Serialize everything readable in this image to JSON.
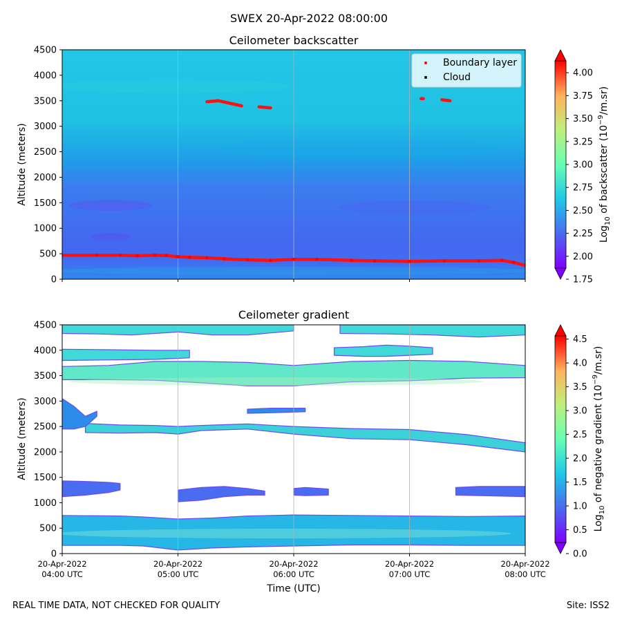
{
  "suptitle": "SWEX 20-Apr-2022 08:00:00",
  "footer": {
    "left": "REAL TIME DATA, NOT CHECKED FOR QUALITY",
    "right": "Site: ISS2"
  },
  "colormap": [
    "#8000ff",
    "#4a6cf0",
    "#1fc7e8",
    "#66ffb3",
    "#c0ef7a",
    "#ffb360",
    "#ff0000"
  ],
  "chart_data": [
    {
      "type": "heatmap",
      "title": "Ceilometer backscatter",
      "ylabel": "Altitude (meters)",
      "ylim": [
        0,
        4500
      ],
      "yticks": [
        "0",
        "500",
        "1000",
        "1500",
        "2000",
        "2500",
        "3000",
        "3500",
        "4000",
        "4500"
      ],
      "xlim_hours": [
        4,
        8
      ],
      "grid": "vertical",
      "legend_position": "upper-right",
      "legend": [
        {
          "label": "Boundary layer",
          "color": "#ff0000"
        },
        {
          "label": "Cloud",
          "color": "#000000"
        }
      ],
      "colorbar": {
        "label_main": "Log",
        "label_sub": "10",
        "label_rest": " of backscatter (10",
        "label_exp": "−9",
        "label_end": "/m.sr)",
        "range": [
          1.75,
          4.25
        ],
        "ticks": [
          "1.75",
          "2.00",
          "2.25",
          "2.50",
          "2.75",
          "3.00",
          "3.25",
          "3.50",
          "3.75",
          "4.00"
        ]
      },
      "boundary_layer": {
        "t": [
          4.0,
          4.3,
          4.5,
          4.65,
          4.8,
          4.9,
          5.0,
          5.1,
          5.25,
          5.4,
          5.6,
          5.8,
          6.0,
          6.2,
          6.5,
          6.7,
          7.0,
          7.3,
          7.6,
          7.8,
          7.9,
          8.0
        ],
        "alt": [
          470,
          470,
          470,
          460,
          470,
          465,
          440,
          430,
          420,
          400,
          380,
          370,
          390,
          390,
          370,
          360,
          350,
          360,
          360,
          370,
          330,
          270
        ]
      },
      "cloud_segments": [
        {
          "t": [
            5.25,
            5.35,
            5.45,
            5.55
          ],
          "alt": [
            3480,
            3500,
            3450,
            3400
          ]
        },
        {
          "t": [
            5.7,
            5.8
          ],
          "alt": [
            3380,
            3360
          ]
        },
        {
          "t": [
            7.1,
            7.12
          ],
          "alt": [
            3540,
            3540
          ]
        },
        {
          "t": [
            7.28,
            7.35
          ],
          "alt": [
            3520,
            3500
          ]
        }
      ]
    },
    {
      "type": "heatmap",
      "title": "Ceilometer gradient",
      "ylabel": "Altitude (meters)",
      "xlabel": "Time (UTC)",
      "ylim": [
        0,
        4500
      ],
      "yticks": [
        "0",
        "500",
        "1000",
        "1500",
        "2000",
        "2500",
        "3000",
        "3500",
        "4000",
        "4500"
      ],
      "xlim_hours": [
        4,
        8
      ],
      "xticks": [
        {
          "date": "20-Apr-2022",
          "time": "04:00 UTC"
        },
        {
          "date": "20-Apr-2022",
          "time": "05:00 UTC"
        },
        {
          "date": "20-Apr-2022",
          "time": "06:00 UTC"
        },
        {
          "date": "20-Apr-2022",
          "time": "07:00 UTC"
        },
        {
          "date": "20-Apr-2022",
          "time": "08:00 UTC"
        }
      ],
      "grid": "vertical",
      "colorbar": {
        "label_main": "Log",
        "label_sub": "10",
        "label_rest": " of negative gradient (10",
        "label_exp": "−9",
        "label_end": "/m.sr)",
        "range": [
          0.0,
          4.8
        ],
        "ticks": [
          "0.0",
          "0.5",
          "1.0",
          "1.5",
          "2.0",
          "2.5",
          "3.0",
          "3.5",
          "4.0",
          "4.5"
        ]
      },
      "bands": [
        {
          "t": [
            4.0,
            4.5,
            4.7,
            5.0,
            5.3,
            5.6,
            6.0,
            6.5,
            7.0,
            7.5,
            8.0
          ],
          "low": [
            160,
            160,
            150,
            70,
            110,
            130,
            150,
            170,
            170,
            160,
            160
          ],
          "high": [
            750,
            740,
            720,
            680,
            700,
            740,
            760,
            750,
            740,
            730,
            740
          ],
          "color": "#27b7e6"
        },
        {
          "t": [
            5.0,
            5.2,
            5.4,
            5.6,
            5.75
          ],
          "low": [
            1020,
            1050,
            1120,
            1150,
            1150
          ],
          "high": [
            1250,
            1300,
            1320,
            1280,
            1230
          ],
          "color": "#4a6cf0"
        },
        {
          "t": [
            4.0,
            4.2,
            4.4,
            4.5
          ],
          "low": [
            1120,
            1150,
            1200,
            1250
          ],
          "high": [
            1430,
            1420,
            1400,
            1380
          ],
          "color": "#4a6cf0"
        },
        {
          "t": [
            7.4,
            7.6,
            7.8,
            8.0
          ],
          "low": [
            1150,
            1140,
            1130,
            1120
          ],
          "high": [
            1300,
            1320,
            1320,
            1320
          ],
          "color": "#4a6cf0"
        },
        {
          "t": [
            6.0,
            6.1,
            6.3
          ],
          "low": [
            1150,
            1140,
            1150
          ],
          "high": [
            1280,
            1300,
            1270
          ],
          "color": "#4a6cf0"
        },
        {
          "t": [
            4.2,
            4.5,
            4.8,
            5.0,
            5.2,
            5.6,
            6.0,
            6.5,
            7.0,
            7.5,
            8.0
          ],
          "low": [
            2380,
            2370,
            2380,
            2350,
            2420,
            2450,
            2350,
            2260,
            2240,
            2140,
            2000
          ],
          "high": [
            2560,
            2530,
            2520,
            2500,
            2520,
            2550,
            2500,
            2460,
            2440,
            2340,
            2180
          ],
          "color": "#3cd0d8"
        },
        {
          "t": [
            4.0,
            4.4,
            4.8,
            5.2,
            5.6,
            6.0,
            6.5,
            7.0,
            7.5,
            8.0
          ],
          "low": [
            3420,
            3420,
            3410,
            3360,
            3300,
            3300,
            3380,
            3400,
            3450,
            3460
          ],
          "high": [
            3680,
            3700,
            3780,
            3780,
            3760,
            3700,
            3780,
            3800,
            3780,
            3700
          ],
          "color": "#60e8c8"
        },
        {
          "t": [
            4.0,
            4.4,
            4.8,
            5.1
          ],
          "low": [
            3800,
            3810,
            3820,
            3850
          ],
          "high": [
            4020,
            4010,
            4000,
            4000
          ],
          "color": "#40d8d8"
        },
        {
          "t": [
            4.0,
            4.3,
            4.6,
            5.0,
            5.3,
            5.6,
            6.0
          ],
          "low": [
            4330,
            4320,
            4300,
            4360,
            4300,
            4300,
            4380
          ],
          "high": [
            4500,
            4500,
            4500,
            4500,
            4500,
            4500,
            4500
          ],
          "color": "#40d8d8"
        },
        {
          "t": [
            6.4,
            6.8,
            7.2,
            7.6,
            8.0
          ],
          "low": [
            4330,
            4320,
            4300,
            4260,
            4300
          ],
          "high": [
            4500,
            4500,
            4500,
            4500,
            4500
          ],
          "color": "#40d8d8"
        },
        {
          "t": [
            6.35,
            6.6,
            6.8,
            7.0,
            7.2
          ],
          "low": [
            3900,
            3880,
            3880,
            3900,
            3920
          ],
          "high": [
            4050,
            4070,
            4100,
            4080,
            4050
          ],
          "color": "#40d8d8"
        },
        {
          "t": [
            4.0,
            4.1,
            4.2,
            4.3
          ],
          "low": [
            2450,
            2450,
            2500,
            2700
          ],
          "high": [
            3050,
            2900,
            2700,
            2800
          ],
          "color": "#2c8cea"
        },
        {
          "t": [
            5.6,
            5.8,
            6.1
          ],
          "low": [
            2760,
            2770,
            2790
          ],
          "high": [
            2840,
            2860,
            2860
          ],
          "color": "#2c8cea"
        }
      ]
    }
  ]
}
